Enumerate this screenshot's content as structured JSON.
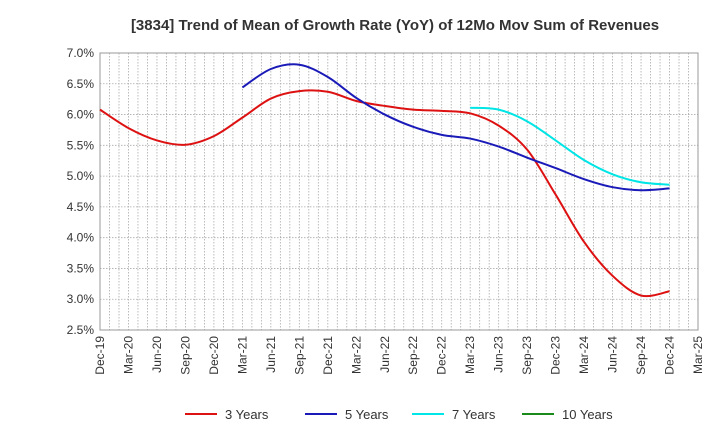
{
  "chart_data": {
    "type": "line",
    "title": "[3834]  Trend of Mean of Growth Rate (YoY) of 12Mo Mov Sum of Revenues",
    "xlabel": "",
    "ylabel": "",
    "ylim": [
      0.025,
      0.07
    ],
    "y_ticks": [
      0.025,
      0.03,
      0.035,
      0.04,
      0.045,
      0.05,
      0.055,
      0.06,
      0.065,
      0.07
    ],
    "y_tick_labels": [
      "2.5%",
      "3.0%",
      "3.5%",
      "4.0%",
      "4.5%",
      "5.0%",
      "5.5%",
      "6.0%",
      "6.5%",
      "7.0%"
    ],
    "x_tick_labels": [
      "Dec-19",
      "Mar-20",
      "Jun-20",
      "Sep-20",
      "Dec-20",
      "Mar-21",
      "Jun-21",
      "Sep-21",
      "Dec-21",
      "Mar-22",
      "Jun-22",
      "Sep-22",
      "Dec-22",
      "Mar-23",
      "Jun-23",
      "Sep-23",
      "Dec-23",
      "Mar-24",
      "Jun-24",
      "Sep-24",
      "Dec-24",
      "Mar-25"
    ],
    "grid": true,
    "legend_position": "bottom",
    "series": [
      {
        "name": "3 Years",
        "color": "#dd1111",
        "points": [
          [
            0,
            0.0608
          ],
          [
            1,
            0.0578
          ],
          [
            2,
            0.0558
          ],
          [
            3,
            0.0551
          ],
          [
            4,
            0.0565
          ],
          [
            5,
            0.0595
          ],
          [
            6,
            0.0626
          ],
          [
            7,
            0.0638
          ],
          [
            8,
            0.0637
          ],
          [
            9,
            0.0622
          ],
          [
            10,
            0.0614
          ],
          [
            11,
            0.0608
          ],
          [
            12,
            0.0606
          ],
          [
            13,
            0.0602
          ],
          [
            14,
            0.0582
          ],
          [
            15,
            0.0543
          ],
          [
            16,
            0.047
          ],
          [
            17,
            0.0393
          ],
          [
            18,
            0.0338
          ],
          [
            19,
            0.0306
          ],
          [
            20,
            0.0313
          ]
        ]
      },
      {
        "name": "5 Years",
        "color": "#1a1ab8",
        "points": [
          [
            5,
            0.0644
          ],
          [
            6,
            0.0674
          ],
          [
            7,
            0.0681
          ],
          [
            8,
            0.0661
          ],
          [
            9,
            0.0627
          ],
          [
            10,
            0.06
          ],
          [
            11,
            0.058
          ],
          [
            12,
            0.0567
          ],
          [
            13,
            0.0561
          ],
          [
            14,
            0.0548
          ],
          [
            15,
            0.053
          ],
          [
            16,
            0.0513
          ],
          [
            17,
            0.0495
          ],
          [
            18,
            0.0482
          ],
          [
            19,
            0.0477
          ],
          [
            20,
            0.048
          ]
        ]
      },
      {
        "name": "7 Years",
        "color": "#00e5e5",
        "points": [
          [
            13,
            0.0611
          ],
          [
            14,
            0.0608
          ],
          [
            15,
            0.0589
          ],
          [
            16,
            0.0558
          ],
          [
            17,
            0.0526
          ],
          [
            18,
            0.0503
          ],
          [
            19,
            0.049
          ],
          [
            20,
            0.0486
          ]
        ]
      },
      {
        "name": "10 Years",
        "color": "#1a8a1a",
        "points": []
      }
    ]
  }
}
